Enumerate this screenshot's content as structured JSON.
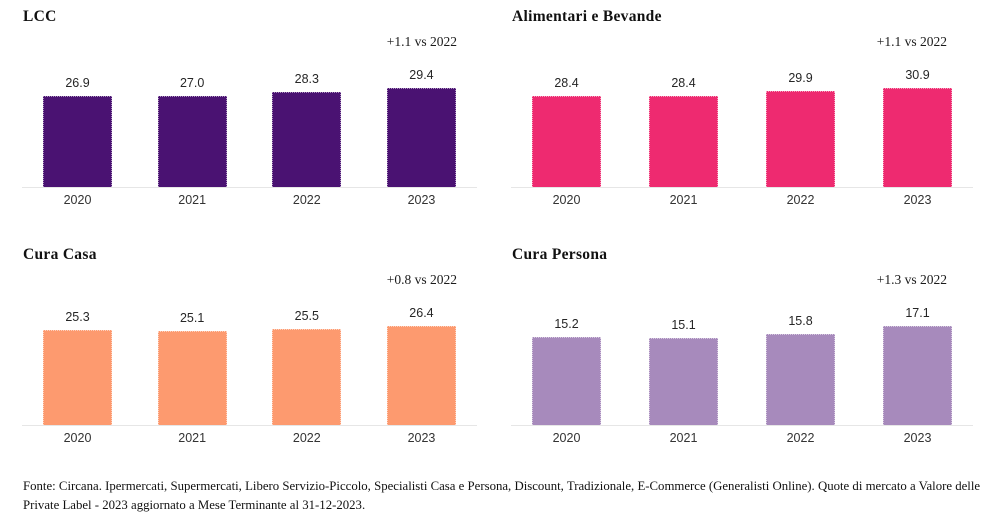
{
  "chart_data": [
    {
      "type": "bar",
      "title": "LCC",
      "annotation": "+1.1 vs 2022",
      "color": "#4A1272",
      "categories": [
        "2020",
        "2021",
        "2022",
        "2023"
      ],
      "values": [
        26.9,
        27.0,
        28.3,
        29.4
      ],
      "value_labels": [
        "26.9",
        "27.0",
        "28.3",
        "29.4"
      ],
      "xlabel": "",
      "ylabel": "",
      "ylim": [
        0,
        29.7
      ],
      "grid": false,
      "legend": "none",
      "value_labels_position": "above-bars"
    },
    {
      "type": "bar",
      "title": "Alimentari e Bevande",
      "annotation": "+1.1 vs 2022",
      "color": "#EE2A70",
      "categories": [
        "2020",
        "2021",
        "2022",
        "2023"
      ],
      "values": [
        28.4,
        28.4,
        29.9,
        30.9
      ],
      "value_labels": [
        "28.4",
        "28.4",
        "29.9",
        "30.9"
      ],
      "xlabel": "",
      "ylabel": "",
      "ylim": [
        0,
        31.2
      ],
      "grid": false,
      "legend": "none",
      "value_labels_position": "above-bars"
    },
    {
      "type": "bar",
      "title": "Cura Casa",
      "annotation": "+0.8 vs 2022",
      "color": "#FD9A6F",
      "categories": [
        "2020",
        "2021",
        "2022",
        "2023"
      ],
      "values": [
        25.3,
        25.1,
        25.5,
        26.4
      ],
      "value_labels": [
        "25.3",
        "25.1",
        "25.5",
        "26.4"
      ],
      "xlabel": "",
      "ylabel": "",
      "ylim": [
        0,
        26.7
      ],
      "grid": false,
      "legend": "none",
      "value_labels_position": "above-bars"
    },
    {
      "type": "bar",
      "title": "Cura Persona",
      "annotation": "+1.3 vs 2022",
      "color": "#A78ABC",
      "categories": [
        "2020",
        "2021",
        "2022",
        "2023"
      ],
      "values": [
        15.2,
        15.1,
        15.8,
        17.1
      ],
      "value_labels": [
        "15.2",
        "15.1",
        "15.8",
        "17.1"
      ],
      "xlabel": "",
      "ylabel": "",
      "ylim": [
        0,
        17.3
      ],
      "grid": false,
      "legend": "none",
      "value_labels_position": "above-bars"
    }
  ],
  "footer": "Fonte: Circana. Ipermercati, Supermercati, Libero Servizio-Piccolo, Specialisti Casa e Persona, Discount, Tradizionale, E-Commerce (Generalisti Online). Quote di mercato a Valore delle Private Label - 2023 aggiornato a Mese Terminante al 31-12-2023."
}
